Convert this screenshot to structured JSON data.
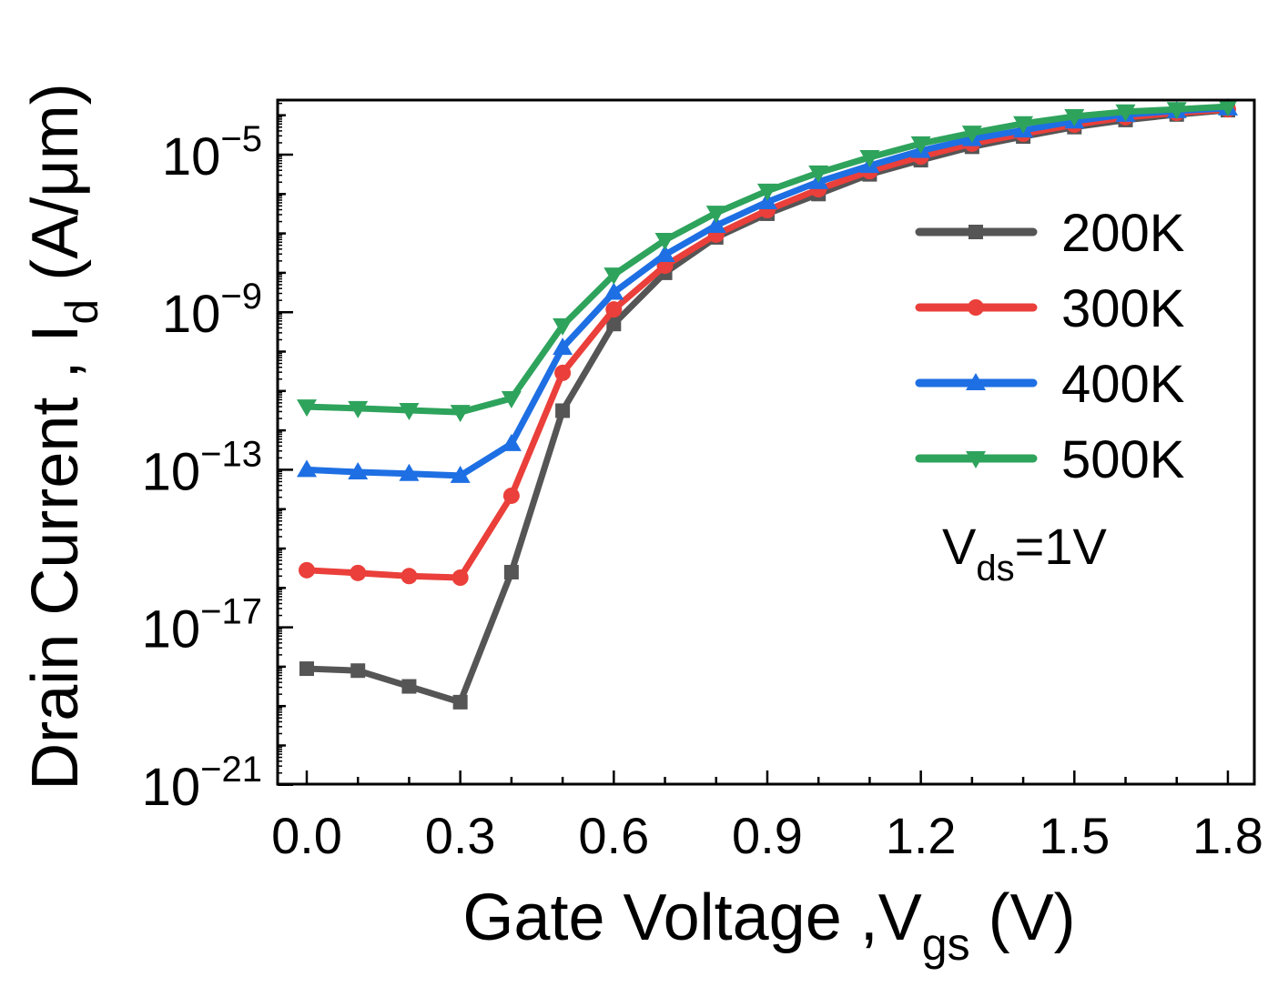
{
  "chart_data": {
    "type": "line",
    "title": "",
    "xlabel": "Gate Voltage ,V",
    "xlabel_sub": "gs",
    "xlabel_suffix": " (V)",
    "ylabel": "Drain Current , I",
    "ylabel_sub": "d",
    "ylabel_suffix": " (A/μm)",
    "yscale": "log",
    "xlim": [
      -0.06,
      1.83
    ],
    "ylim_log10": [
      -21,
      -3.6
    ],
    "x_ticks": [
      "0.0",
      "0.3",
      "0.6",
      "0.9",
      "1.2",
      "1.5",
      "1.8"
    ],
    "x_tick_values": [
      0,
      0.3,
      0.6,
      0.9,
      1.2,
      1.5,
      1.8
    ],
    "y_ticks_log10": [
      -5,
      -9,
      -13,
      -17,
      -21
    ],
    "y_tick_base": "10",
    "y_tick_exponents": [
      "−5",
      "−9",
      "−13",
      "−17",
      "−21"
    ],
    "legend_position": "right",
    "annotation": {
      "text": "V",
      "sub": "ds",
      "suffix": "=1V"
    },
    "x": [
      0.0,
      0.1,
      0.2,
      0.3,
      0.4,
      0.5,
      0.6,
      0.7,
      0.8,
      0.9,
      1.0,
      1.1,
      1.2,
      1.3,
      1.4,
      1.5,
      1.6,
      1.7,
      1.8
    ],
    "series": [
      {
        "name": "200K",
        "color": "#555555",
        "marker": "square",
        "log10_values": [
          -18.05,
          -18.1,
          -18.5,
          -18.9,
          -15.6,
          -11.5,
          -9.3,
          -8.0,
          -7.1,
          -6.5,
          -6.0,
          -5.5,
          -5.14,
          -4.8,
          -4.54,
          -4.3,
          -4.12,
          -3.98,
          -3.87
        ]
      },
      {
        "name": "300K",
        "color": "#ea3f3a",
        "marker": "circle",
        "log10_values": [
          -15.55,
          -15.62,
          -15.7,
          -15.74,
          -13.66,
          -10.54,
          -8.93,
          -7.82,
          -7.03,
          -6.41,
          -5.88,
          -5.42,
          -5.05,
          -4.72,
          -4.47,
          -4.24,
          -4.05,
          -3.94,
          -3.85
        ]
      },
      {
        "name": "400K",
        "color": "#1e6fe3",
        "marker": "triangle-up",
        "log10_values": [
          -13.0,
          -13.06,
          -13.1,
          -13.15,
          -12.34,
          -9.9,
          -8.5,
          -7.54,
          -6.8,
          -6.2,
          -5.69,
          -5.28,
          -4.9,
          -4.6,
          -4.38,
          -4.15,
          -3.98,
          -3.89,
          -3.82
        ]
      },
      {
        "name": "500K",
        "color": "#2ea35c",
        "marker": "triangle-down",
        "log10_values": [
          -11.4,
          -11.44,
          -11.49,
          -11.54,
          -11.19,
          -9.34,
          -8.05,
          -7.17,
          -6.48,
          -5.92,
          -5.46,
          -5.07,
          -4.72,
          -4.45,
          -4.21,
          -4.03,
          -3.91,
          -3.85,
          -3.78
        ]
      }
    ]
  }
}
